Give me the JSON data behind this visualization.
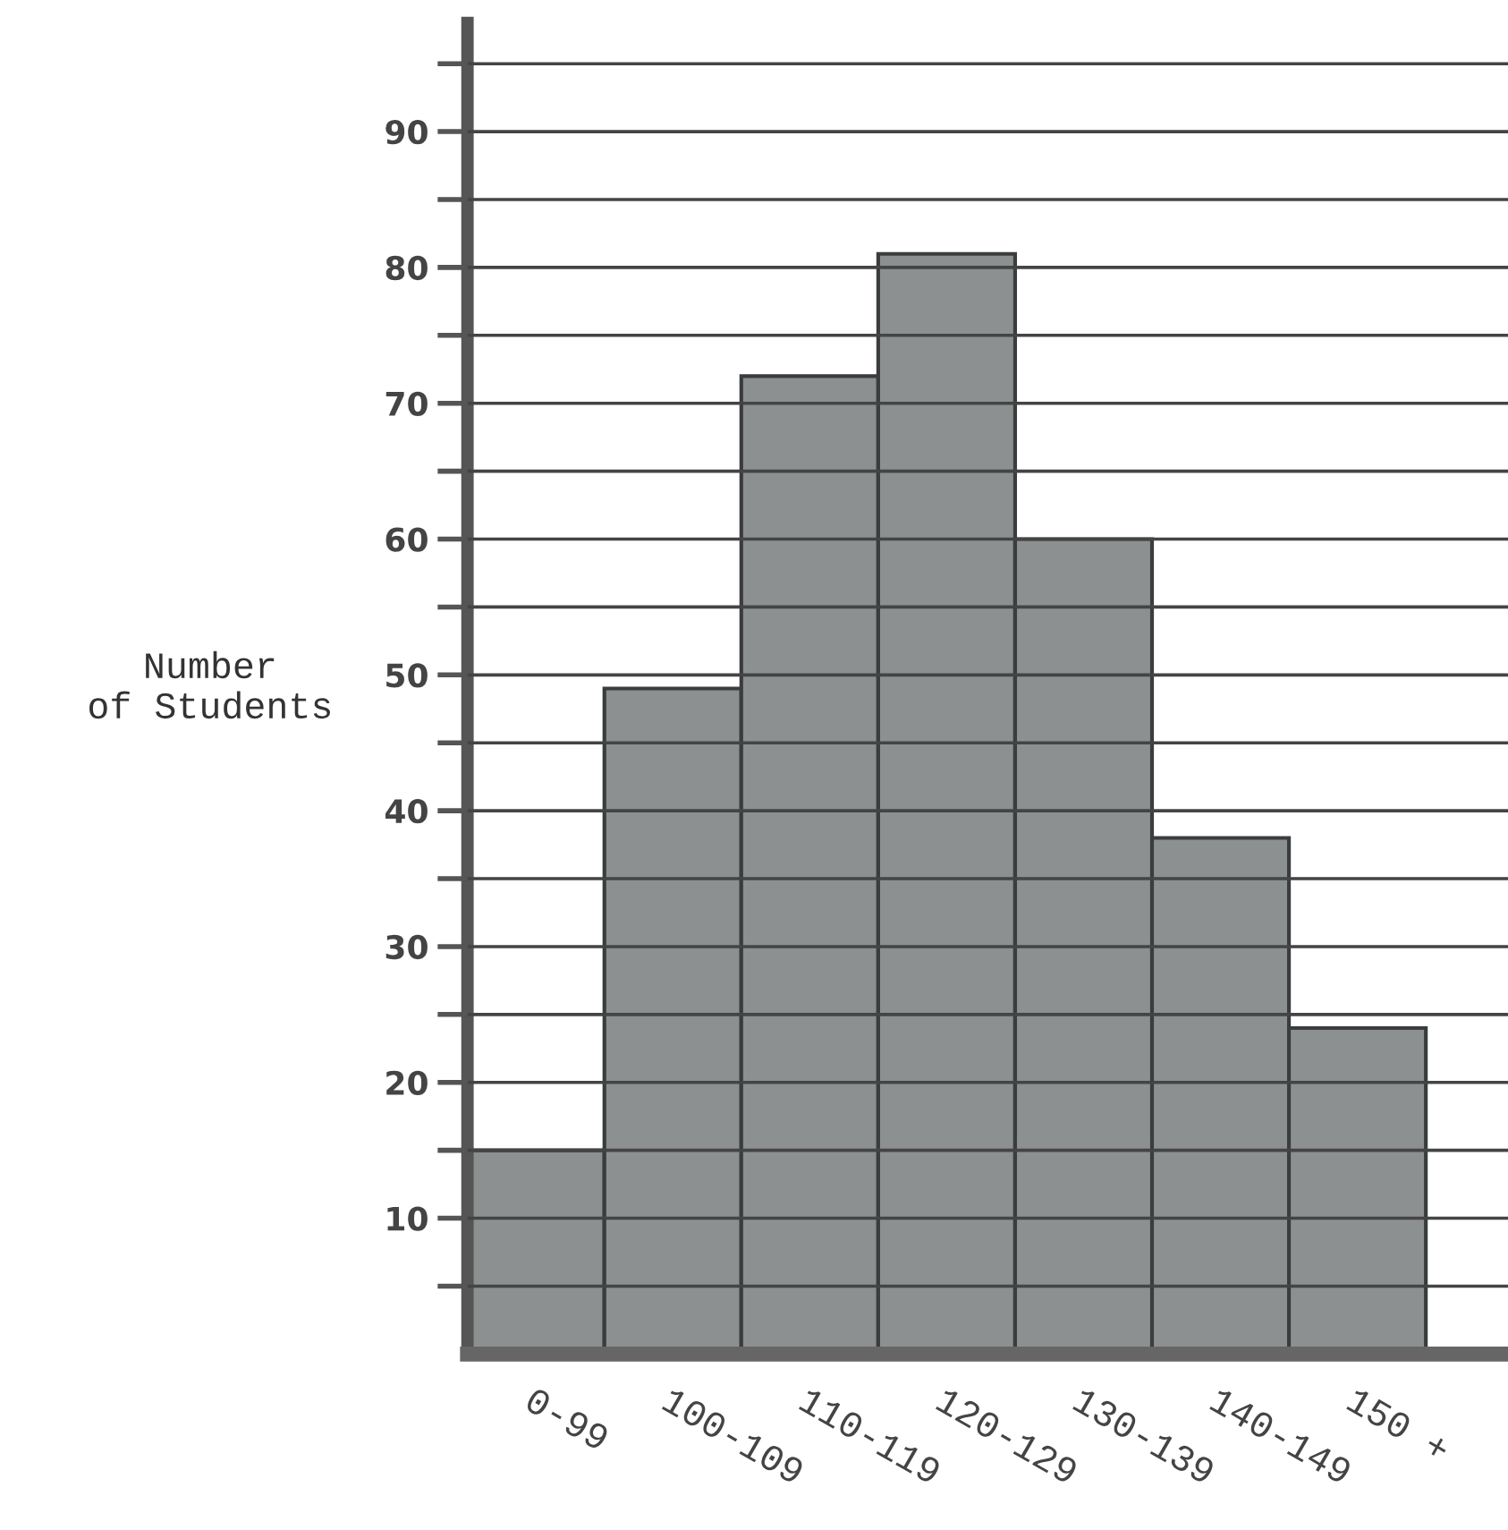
{
  "chart_data": {
    "type": "bar",
    "ylabel": "Number\nof Students",
    "categories": [
      "0-99",
      "100-109",
      "110-119",
      "120-129",
      "130-139",
      "140-149",
      "150 +"
    ],
    "values": [
      15,
      49,
      72,
      81,
      60,
      38,
      24
    ],
    "color": "#8c9091",
    "ylim": [
      0,
      98
    ],
    "yticks": [
      {
        "value": 5,
        "label": null
      },
      10,
      {
        "value": 15,
        "label": null
      },
      20,
      {
        "value": 25,
        "label": null
      },
      30,
      {
        "value": 35,
        "label": null
      },
      40,
      {
        "value": 45,
        "label": null
      },
      50,
      {
        "value": 55,
        "label": null
      },
      60,
      {
        "value": 65,
        "label": null
      },
      70,
      {
        "value": 75,
        "label": null
      },
      80,
      {
        "value": 85,
        "label": null
      },
      90,
      {
        "value": 95,
        "label": null
      }
    ],
    "grid": "y",
    "legend": false
  }
}
